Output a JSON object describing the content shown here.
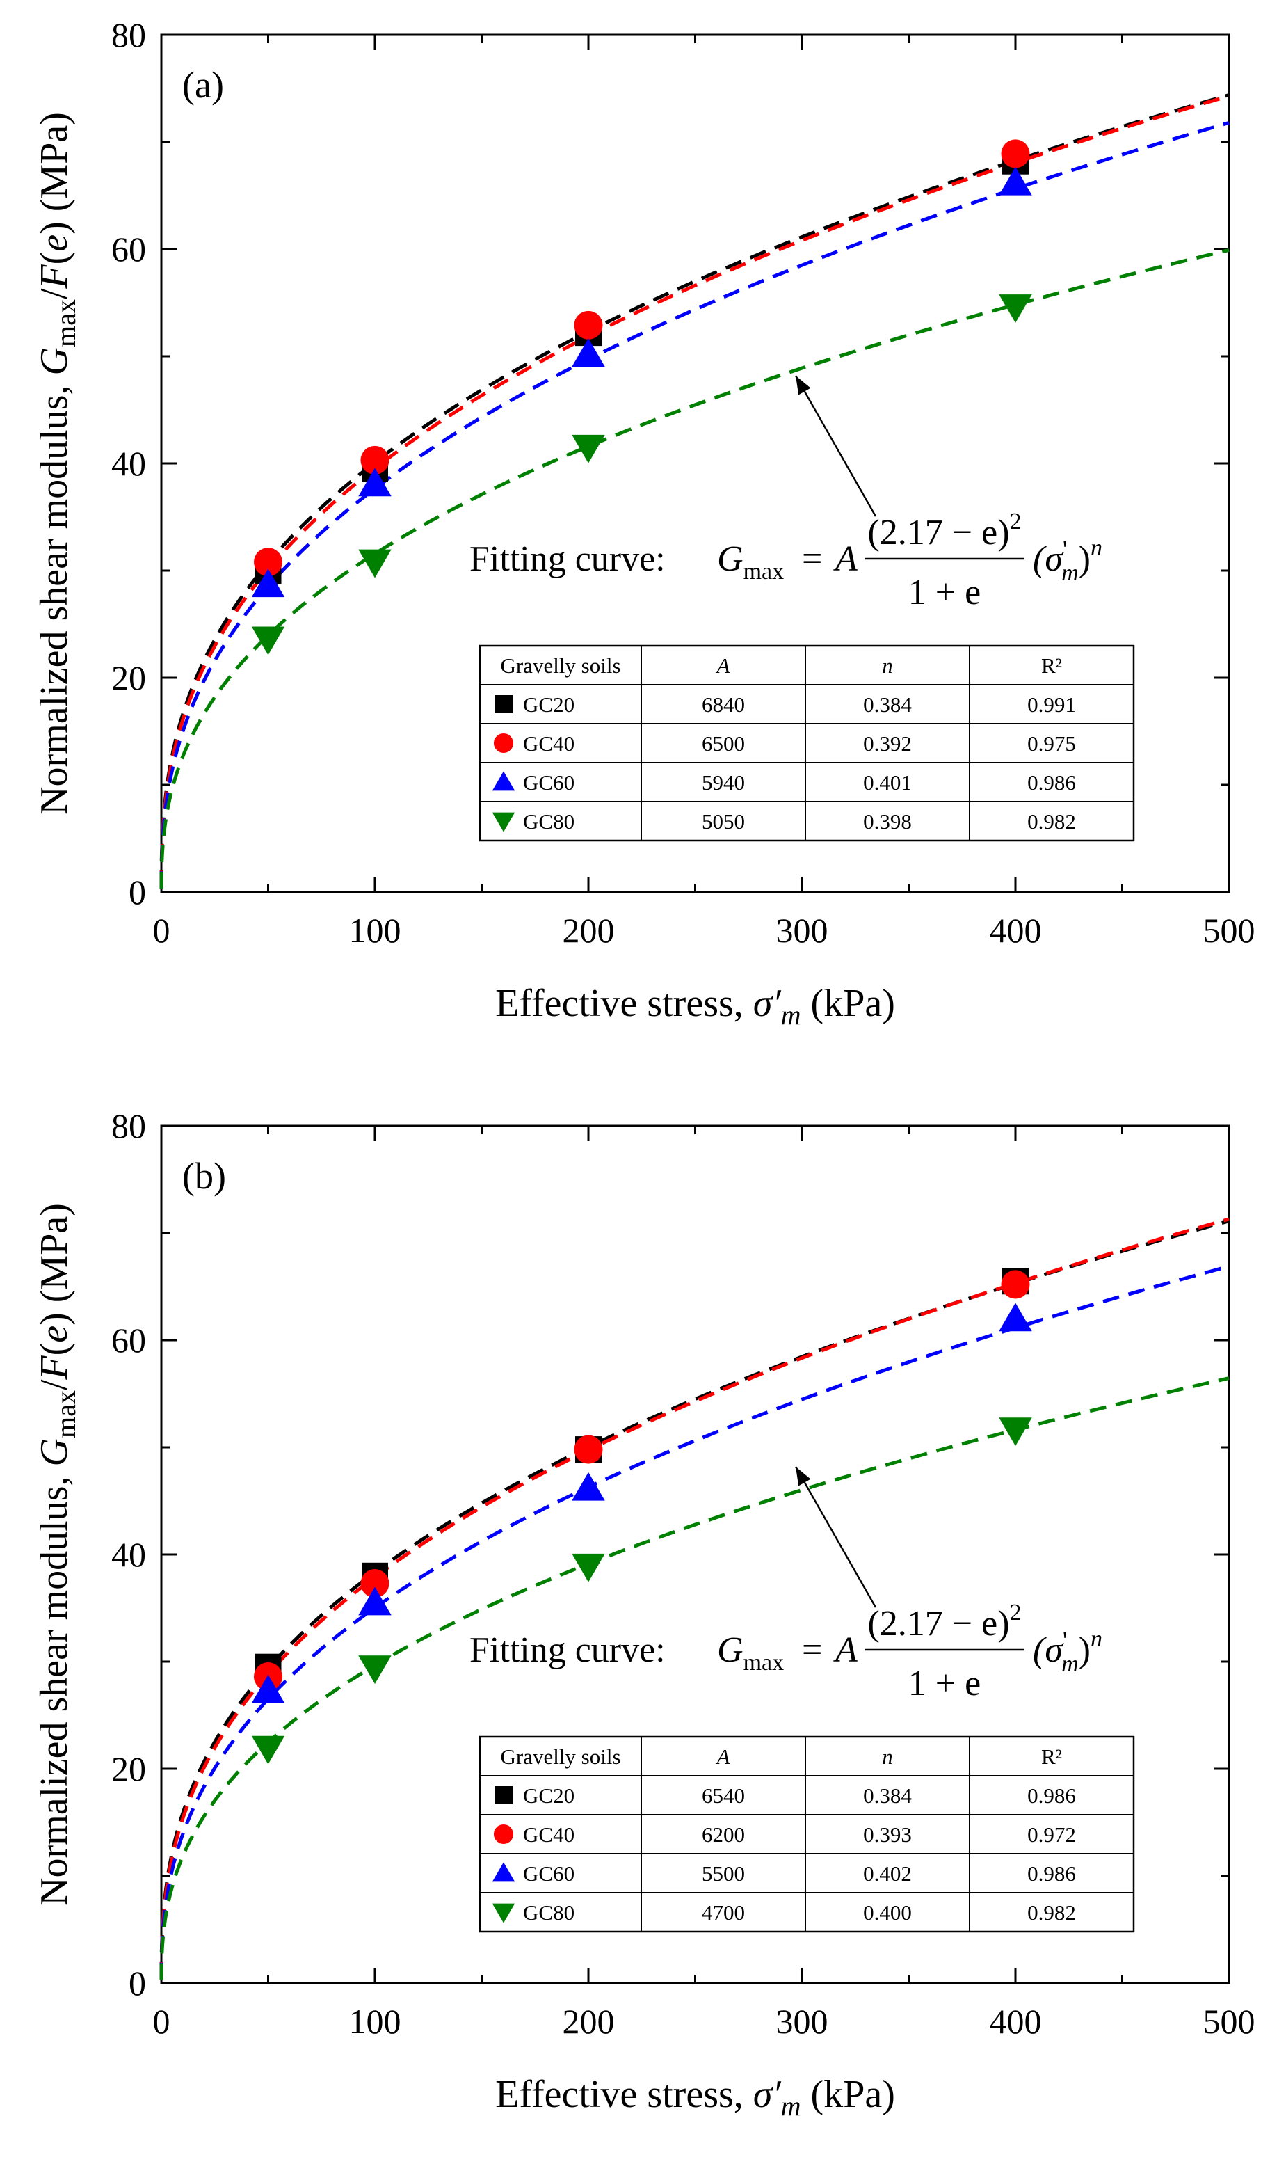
{
  "chart_data": [
    {
      "type": "scatter",
      "panel_label": "(a)",
      "xlabel": "Effective stress, σ′m (kPa)",
      "xlabel_parts": {
        "prefix": "Effective stress, ",
        "symbol": "σ′",
        "subscript": "m",
        "suffix": " (kPa)"
      },
      "ylabel": "Normalized shear modulus, Gmax/F(e) (MPa)",
      "ylabel_parts": {
        "prefix": "Normalized shear modulus, ",
        "G": "G",
        "sub": "max",
        "mid": "/",
        "F": "F",
        "open": "(",
        "e": "e",
        "close": ") (MPa)"
      },
      "xlim": [
        0,
        500
      ],
      "ylim": [
        0,
        80
      ],
      "xticks": [
        0,
        100,
        200,
        300,
        400,
        500
      ],
      "yticks": [
        0,
        20,
        40,
        60,
        80
      ],
      "x": [
        50,
        100,
        200,
        400
      ],
      "series": [
        {
          "name": "GC20",
          "marker": "square",
          "color": "#000000",
          "values": [
            30.0,
            39.5,
            52.2,
            68.2
          ],
          "A": "6840",
          "n": "0.384",
          "R2": "0.991",
          "fit_a": 6.84,
          "fit_n": 0.384
        },
        {
          "name": "GC40",
          "marker": "circle",
          "color": "#ff0000",
          "values": [
            30.8,
            40.3,
            52.9,
            68.9
          ],
          "A": "6500",
          "n": "0.392",
          "R2": "0.975",
          "fit_a": 6.5,
          "fit_n": 0.392
        },
        {
          "name": "GC60",
          "marker": "triangle-up",
          "color": "#0000ff",
          "values": [
            28.7,
            38.1,
            50.2,
            66.2
          ],
          "A": "5940",
          "n": "0.401",
          "R2": "0.986",
          "fit_a": 5.94,
          "fit_n": 0.401
        },
        {
          "name": "GC80",
          "marker": "triangle-down",
          "color": "#008000",
          "values": [
            23.6,
            30.8,
            41.5,
            54.6
          ],
          "A": "5050",
          "n": "0.398",
          "R2": "0.982",
          "fit_a": 5.05,
          "fit_n": 0.398
        }
      ],
      "annotation": {
        "label": "Fitting curve:",
        "G": "G",
        "sub": "max",
        "eq": "=",
        "A": "A",
        "numerator": "(2.17 − e)",
        "numerator_power": "2",
        "denominator": "1 + e",
        "sigma": "(σ",
        "sigma_prime": "'",
        "sigma_sub": "m",
        "sigma_close": ")",
        "power": "n"
      },
      "table_headers": [
        "Gravelly soils",
        "A",
        "n",
        "R²"
      ]
    },
    {
      "type": "scatter",
      "panel_label": "(b)",
      "xlabel": "Effective stress, σ′m (kPa)",
      "xlabel_parts": {
        "prefix": "Effective stress, ",
        "symbol": "σ′",
        "subscript": "m",
        "suffix": " (kPa)"
      },
      "ylabel": "Normalized shear modulus, Gmax/F(e) (MPa)",
      "ylabel_parts": {
        "prefix": "Normalized shear modulus, ",
        "G": "G",
        "sub": "max",
        "mid": "/",
        "F": "F",
        "open": "(",
        "e": "e",
        "close": ") (MPa)"
      },
      "xlim": [
        0,
        500
      ],
      "ylim": [
        0,
        80
      ],
      "xticks": [
        0,
        100,
        200,
        300,
        400,
        500
      ],
      "yticks": [
        0,
        20,
        40,
        60,
        80
      ],
      "x": [
        50,
        100,
        200,
        400
      ],
      "series": [
        {
          "name": "GC20",
          "marker": "square",
          "color": "#000000",
          "values": [
            29.5,
            38.0,
            49.8,
            65.5
          ],
          "A": "6540",
          "n": "0.384",
          "R2": "0.986",
          "fit_a": 6.54,
          "fit_n": 0.384
        },
        {
          "name": "GC40",
          "marker": "circle",
          "color": "#ff0000",
          "values": [
            28.6,
            37.3,
            49.8,
            65.2
          ],
          "A": "6200",
          "n": "0.393",
          "R2": "0.972",
          "fit_a": 6.2,
          "fit_n": 0.393
        },
        {
          "name": "GC60",
          "marker": "triangle-up",
          "color": "#0000ff",
          "values": [
            27.3,
            35.5,
            46.2,
            62.0
          ],
          "A": "5500",
          "n": "0.402",
          "R2": "0.986",
          "fit_a": 5.5,
          "fit_n": 0.402
        },
        {
          "name": "GC80",
          "marker": "triangle-down",
          "color": "#008000",
          "values": [
            21.9,
            29.4,
            38.9,
            51.6
          ],
          "A": "4700",
          "n": "0.400",
          "R2": "0.982",
          "fit_a": 4.7,
          "fit_n": 0.4
        }
      ],
      "annotation": {
        "label": "Fitting curve:",
        "G": "G",
        "sub": "max",
        "eq": "=",
        "A": "A",
        "numerator": "(2.17 − e)",
        "numerator_power": "2",
        "denominator": "1 + e",
        "sigma": "(σ",
        "sigma_prime": "'",
        "sigma_sub": "m",
        "sigma_close": ")",
        "power": "n"
      },
      "table_headers": [
        "Gravelly soils",
        "A",
        "n",
        "R²"
      ]
    }
  ]
}
